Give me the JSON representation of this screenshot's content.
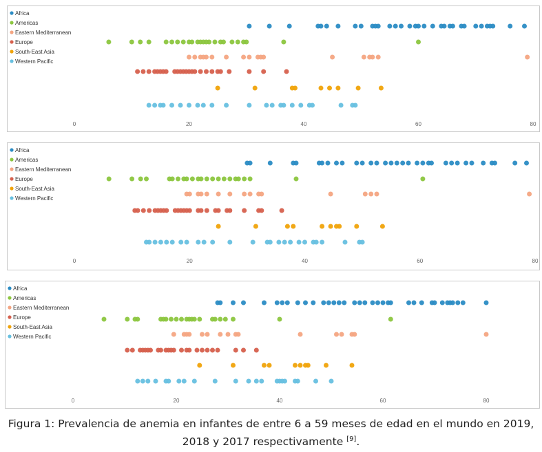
{
  "series_colors": {
    "Africa": "#2b8cc4",
    "Americas": "#8cc63f",
    "Eastern Mediterranean": "#f4a582",
    "Europe": "#d6604d",
    "South-East Asia": "#f0a30a",
    "Western Pacific": "#67c0e0"
  },
  "caption": {
    "text": "Figura 1: Prevalencia de anemia en infantes de entre 6 a 59 meses de edad en el mundo en 2019, 2018 y 2017 respectivamente",
    "ref": "[9]",
    "end": "."
  },
  "chart_data": [
    {
      "type": "scatter",
      "xlim": [
        0,
        80
      ],
      "x_ticks": [
        "0",
        "20",
        "40",
        "60",
        "80"
      ],
      "legend": [
        "Africa",
        "Americas",
        "Eastern Mediterranean",
        "Europe",
        "South-East Asia",
        "Western Pacific"
      ],
      "legend_position": "top-left",
      "grid": false,
      "series": [
        {
          "name": "Africa",
          "values": [
            30.5,
            34,
            37.5,
            42.5,
            43,
            44,
            46,
            49,
            50,
            52,
            52.5,
            53,
            55,
            56,
            57,
            58.5,
            59.5,
            60,
            61,
            62.5,
            64,
            64.5,
            65.5,
            66,
            67.5,
            68,
            70,
            71,
            72,
            72.5,
            73,
            76,
            78.5
          ]
        },
        {
          "name": "Americas",
          "values": [
            6,
            10,
            11.5,
            13,
            16,
            17,
            18,
            19,
            20,
            20.5,
            21.5,
            22,
            22.5,
            23,
            23.5,
            24.5,
            25.5,
            26,
            27.5,
            28.5,
            29.5,
            30,
            36.5,
            60
          ]
        },
        {
          "name": "Eastern Mediterranean",
          "values": [
            20,
            21,
            22,
            22.5,
            23,
            24,
            26.5,
            29.5,
            30.5,
            32,
            32.5,
            33,
            45,
            50.5,
            51.5,
            52,
            53,
            79
          ]
        },
        {
          "name": "Europe",
          "values": [
            11,
            12,
            13,
            14,
            14.5,
            15,
            15.5,
            16,
            17.5,
            18,
            18.5,
            19,
            19.5,
            20,
            20.5,
            21,
            22,
            23,
            24,
            25,
            25.5,
            27,
            30.5,
            33,
            37
          ]
        },
        {
          "name": "South-East Asia",
          "values": [
            25,
            31.5,
            38,
            38.5,
            43,
            44.5,
            46,
            49.5,
            53.5
          ]
        },
        {
          "name": "Western Pacific",
          "values": [
            13,
            14,
            15,
            15.5,
            17,
            18.5,
            20,
            21.5,
            22.5,
            24,
            26.5,
            30.5,
            33.5,
            34.5,
            36,
            36.5,
            38,
            39.5,
            41,
            41.5,
            46.5,
            48.5,
            49
          ]
        }
      ]
    },
    {
      "type": "scatter",
      "xlim": [
        0,
        80
      ],
      "x_ticks": [
        "0",
        "20",
        "40",
        "60",
        "80"
      ],
      "legend": [
        "Africa",
        "Americas",
        "Eastern Mediterranean",
        "Europe",
        "South-East Asia",
        "Western Pacific"
      ],
      "legend_position": "top-left",
      "grid": false,
      "series": [
        {
          "name": "Africa",
          "values": [
            30,
            30.5,
            34,
            38,
            38.5,
            42.5,
            43,
            44,
            45.5,
            46.5,
            49,
            50,
            51.5,
            52.5,
            54,
            55,
            56,
            57,
            58,
            59.5,
            60.5,
            61.5,
            62,
            64.5,
            65.5,
            66.5,
            68,
            69,
            71,
            72.5,
            73,
            76.5,
            78.5
          ]
        },
        {
          "name": "Americas",
          "values": [
            6,
            10,
            11.5,
            12.5,
            16.5,
            17,
            18,
            19,
            19.5,
            20.5,
            21.5,
            22,
            23,
            24,
            25,
            26,
            27,
            28,
            28.5,
            29.5,
            30.5,
            38.5,
            60.5
          ]
        },
        {
          "name": "Eastern Mediterranean",
          "values": [
            19.5,
            20,
            21.5,
            22,
            23,
            25,
            27,
            29.5,
            30.5,
            32,
            32.5,
            44.5,
            50.5,
            51.5,
            52.5,
            79
          ]
        },
        {
          "name": "Europe",
          "values": [
            10.5,
            11,
            12,
            13,
            14,
            14.5,
            15,
            15.5,
            16,
            17.5,
            18,
            18.5,
            19,
            19.5,
            20,
            21.5,
            22,
            23,
            24.5,
            25,
            26.5,
            27,
            29.5,
            32,
            32.5,
            36
          ]
        },
        {
          "name": "South-East Asia",
          "values": [
            25,
            31.5,
            37,
            38,
            43,
            44.5,
            45.5,
            46,
            49,
            53.5
          ]
        },
        {
          "name": "Western Pacific",
          "values": [
            12.5,
            13,
            14,
            15,
            16,
            17,
            18.5,
            19.5,
            21.5,
            22.5,
            24,
            27,
            31,
            33.5,
            34,
            35.5,
            36.5,
            37.5,
            39,
            40,
            41.5,
            42,
            43,
            47,
            49.5,
            50
          ]
        }
      ]
    },
    {
      "type": "scatter",
      "xlim": [
        0,
        80
      ],
      "x_ticks": [
        "0",
        "20",
        "40",
        "60",
        "80"
      ],
      "legend": [
        "Africa",
        "Americas",
        "Eastern Mediterranean",
        "Europe",
        "South-East Asia",
        "Western Pacific"
      ],
      "legend_position": "top-left",
      "grid": false,
      "series": [
        {
          "name": "Africa",
          "values": [
            28,
            28.5,
            31,
            33,
            37,
            39.5,
            40.5,
            41.5,
            43.5,
            45,
            46.5,
            48.5,
            49.5,
            50.5,
            51.5,
            52.5,
            54.5,
            55.5,
            56.5,
            58,
            59,
            60,
            61,
            61.5,
            65,
            66,
            67.5,
            69.5,
            70,
            71.5,
            72.5,
            73,
            73.5,
            74.5,
            75.5,
            80
          ]
        },
        {
          "name": "Americas",
          "values": [
            6,
            10.5,
            12,
            12.5,
            17,
            17.5,
            18,
            19,
            20,
            21,
            22,
            22.5,
            23,
            23.5,
            24.5,
            27,
            27.5,
            28.5,
            29.5,
            31,
            40,
            61.5
          ]
        },
        {
          "name": "Eastern Mediterranean",
          "values": [
            19.5,
            21.5,
            22,
            22.5,
            25,
            26,
            28.5,
            30,
            31.5,
            32,
            44,
            51,
            52,
            54,
            54.5,
            80
          ]
        },
        {
          "name": "Europe",
          "values": [
            10.5,
            11.5,
            13,
            13.5,
            14,
            14.5,
            15,
            16.5,
            17,
            18,
            18.5,
            19,
            19.5,
            21,
            22,
            22.5,
            24,
            25,
            26,
            27,
            28,
            31.5,
            33,
            35.5
          ]
        },
        {
          "name": "South-East Asia",
          "values": [
            24.5,
            31,
            37,
            38,
            43,
            44,
            45,
            45.5,
            49,
            54
          ]
        },
        {
          "name": "Western Pacific",
          "values": [
            12.5,
            13.5,
            14.5,
            16,
            18,
            18.5,
            20.5,
            21.5,
            23.5,
            27.5,
            31.5,
            34,
            35.5,
            36.5,
            39.5,
            40,
            40.5,
            41,
            43,
            43.5,
            47,
            50
          ]
        }
      ]
    }
  ]
}
